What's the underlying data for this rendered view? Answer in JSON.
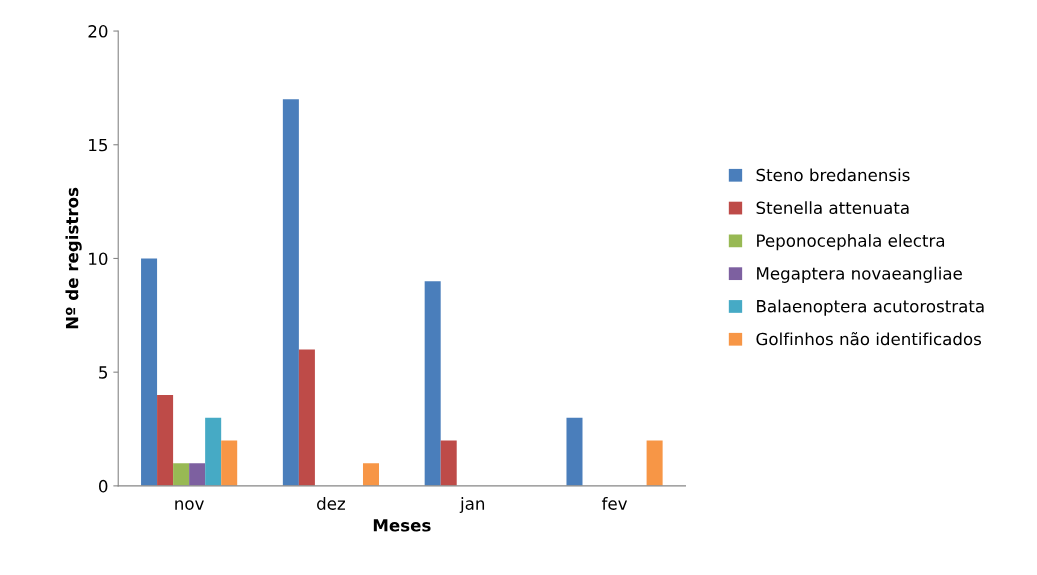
{
  "chart_data": {
    "type": "bar",
    "xlabel": "Meses",
    "ylabel": "Nº de registros",
    "categories": [
      "nov",
      "dez",
      "jan",
      "fev"
    ],
    "series": [
      {
        "name": "Steno bredanensis",
        "color": "#4a7ebb",
        "values": [
          10,
          17,
          9,
          3
        ]
      },
      {
        "name": "Stenella attenuata",
        "color": "#be4b48",
        "values": [
          4,
          6,
          2,
          0
        ]
      },
      {
        "name": "Peponocephala electra",
        "color": "#98b954",
        "values": [
          1,
          0,
          0,
          0
        ]
      },
      {
        "name": "Megaptera novaeangliae",
        "color": "#7d60a0",
        "values": [
          1,
          0,
          0,
          0
        ]
      },
      {
        "name": "Balaenoptera acutorostrata",
        "color": "#46aac5",
        "values": [
          3,
          0,
          0,
          0
        ]
      },
      {
        "name": "Golfinhos não identificados",
        "color": "#f79646",
        "values": [
          2,
          1,
          0,
          2
        ]
      }
    ],
    "ylim": [
      0,
      20
    ],
    "yticks": [
      0,
      5,
      10,
      15,
      20
    ],
    "grid": false,
    "legend": "right"
  }
}
